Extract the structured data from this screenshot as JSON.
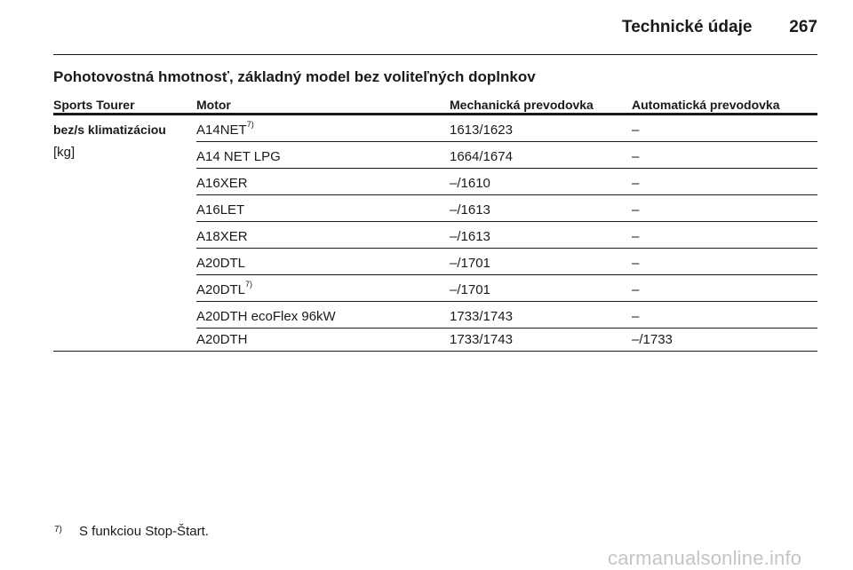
{
  "header": {
    "title": "Technické údaje",
    "page_number": "267"
  },
  "section": {
    "title": "Pohotovostná hmotnosť, základný model bez voliteľných doplnkov"
  },
  "table": {
    "columns": [
      "Sports Tourer",
      "Motor",
      "Mechanická prevodovka",
      "Automatická prevodovka"
    ],
    "row_label": "bez/s klimatizáciou",
    "unit": "[kg]",
    "rows": [
      {
        "motor": "A14NET",
        "note": "7)",
        "mechanical": "1613/1623",
        "automatic": "–"
      },
      {
        "motor": "A14 NET LPG",
        "note": "",
        "mechanical": "1664/1674",
        "automatic": "–"
      },
      {
        "motor": "A16XER",
        "note": "",
        "mechanical": "–/1610",
        "automatic": "–"
      },
      {
        "motor": "A16LET",
        "note": "",
        "mechanical": "–/1613",
        "automatic": "–"
      },
      {
        "motor": "A18XER",
        "note": "",
        "mechanical": "–/1613",
        "automatic": "–"
      },
      {
        "motor": "A20DTL",
        "note": "",
        "mechanical": "–/1701",
        "automatic": "–"
      },
      {
        "motor": "A20DTL",
        "note": "7)",
        "mechanical": "–/1701",
        "automatic": "–"
      },
      {
        "motor": "A20DTH ecoFlex 96kW",
        "note": "",
        "mechanical": "1733/1743",
        "automatic": "–"
      },
      {
        "motor": "A20DTH",
        "note": "",
        "mechanical": "1733/1743",
        "automatic": "–/1733"
      }
    ]
  },
  "footnote": {
    "mark": "7)",
    "text": "S funkciou Stop-Štart."
  },
  "watermark": "carmanualsonline.info"
}
